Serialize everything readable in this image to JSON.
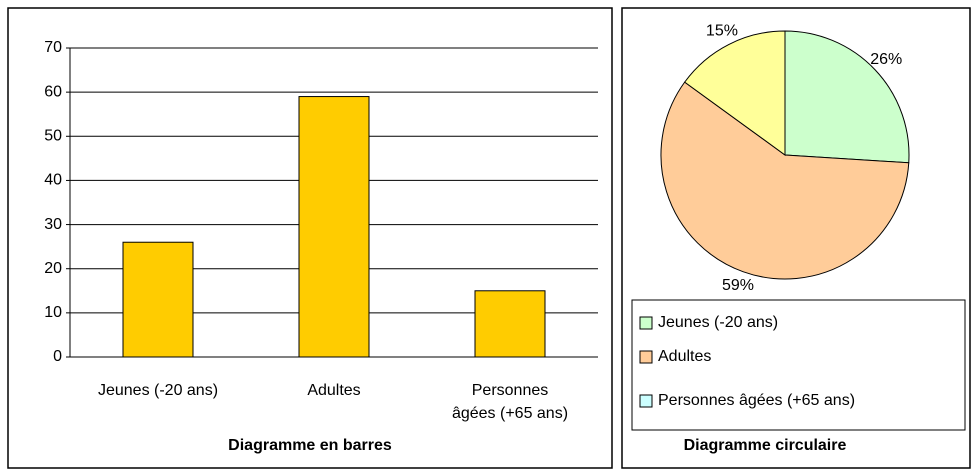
{
  "chart_data": [
    {
      "type": "bar",
      "title": "Diagramme en barres",
      "categories": [
        "Jeunes (-20 ans)",
        "Adultes",
        "Personnes âgées (+65 ans)"
      ],
      "values": [
        26,
        59,
        15
      ],
      "color": "#ffcc00",
      "ylim": [
        0,
        70
      ],
      "yticks": [
        0,
        10,
        20,
        30,
        40,
        50,
        60,
        70
      ],
      "grid": true
    },
    {
      "type": "pie",
      "title": "Diagramme circulaire",
      "categories": [
        "Jeunes (-20 ans)",
        "Adultes",
        "Personnes âgées (+65 ans)"
      ],
      "values": [
        26,
        59,
        15
      ],
      "value_labels": [
        "26%",
        "59%",
        "15%"
      ],
      "colors": [
        "#ccffcc",
        "#ffcc99",
        "#ffff99"
      ],
      "legend_colors": [
        "#ccffcc",
        "#ffcc99",
        "#ccffff"
      ]
    }
  ]
}
